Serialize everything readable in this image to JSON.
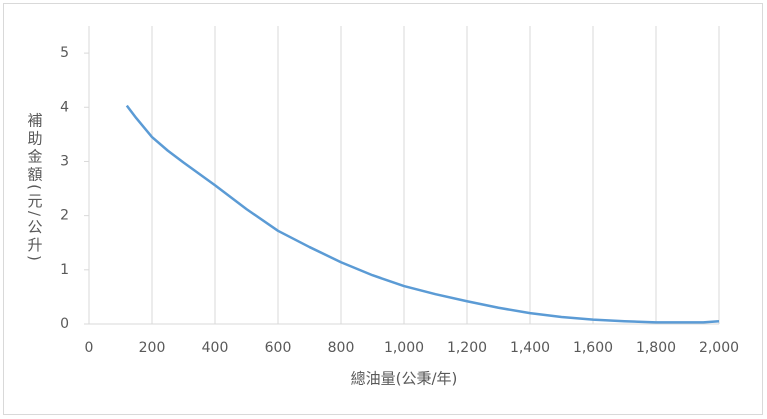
{
  "chart_data": {
    "type": "line",
    "x_label": "總油量(公秉/年)",
    "y_label": "補助金額(元/公升)",
    "x": [
      120,
      150,
      200,
      250,
      300,
      400,
      500,
      600,
      700,
      800,
      900,
      1000,
      1100,
      1200,
      1300,
      1400,
      1500,
      1600,
      1700,
      1800,
      1900,
      1950,
      2000
    ],
    "series": [
      {
        "name": "補助金額",
        "color": "#5b9bd5",
        "values": [
          4.03,
          3.8,
          3.45,
          3.2,
          2.98,
          2.56,
          2.12,
          1.72,
          1.42,
          1.14,
          0.9,
          0.7,
          0.55,
          0.42,
          0.3,
          0.2,
          0.13,
          0.08,
          0.05,
          0.03,
          0.03,
          0.03,
          0.05
        ]
      }
    ],
    "xlim": [
      0,
      2000
    ],
    "xticks": [
      0,
      200,
      400,
      600,
      800,
      {
        "value": 1000,
        "label": "1,000"
      },
      {
        "value": 1200,
        "label": "1,200"
      },
      {
        "value": 1400,
        "label": "1,400"
      },
      {
        "value": 1600,
        "label": "1,600"
      },
      {
        "value": 1800,
        "label": "1,800"
      },
      {
        "value": 2000,
        "label": "2,000"
      }
    ],
    "ylim": [
      0,
      5.5
    ],
    "yticks": [
      0,
      1,
      2,
      3,
      4,
      5
    ],
    "grid": true
  }
}
